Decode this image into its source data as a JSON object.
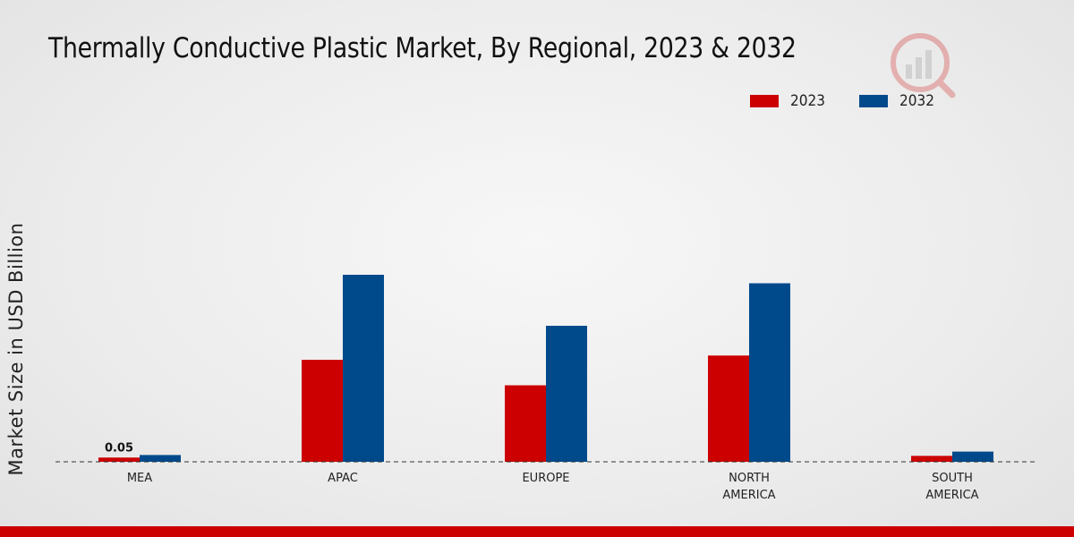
{
  "chart_data": {
    "type": "bar",
    "title": "Thermally Conductive Plastic Market, By Regional, 2023 & 2032",
    "xlabel": "",
    "ylabel": "Market Size in USD Billion",
    "categories": [
      [
        "MEA"
      ],
      [
        "APAC"
      ],
      [
        "EUROPE"
      ],
      [
        "NORTH",
        "AMERICA"
      ],
      [
        "SOUTH",
        "AMERICA"
      ]
    ],
    "series": [
      {
        "name": "2023",
        "color": "#cc0000",
        "values": [
          0.05,
          1.2,
          0.9,
          1.25,
          0.07
        ]
      },
      {
        "name": "2032",
        "color": "#004a8c",
        "values": [
          0.08,
          2.2,
          1.6,
          2.1,
          0.12
        ]
      }
    ],
    "data_labels": [
      {
        "series": 0,
        "index": 0,
        "text": "0.05"
      }
    ],
    "ylim": [
      0,
      2.2
    ],
    "grid": false,
    "legend_position": "top-right"
  }
}
